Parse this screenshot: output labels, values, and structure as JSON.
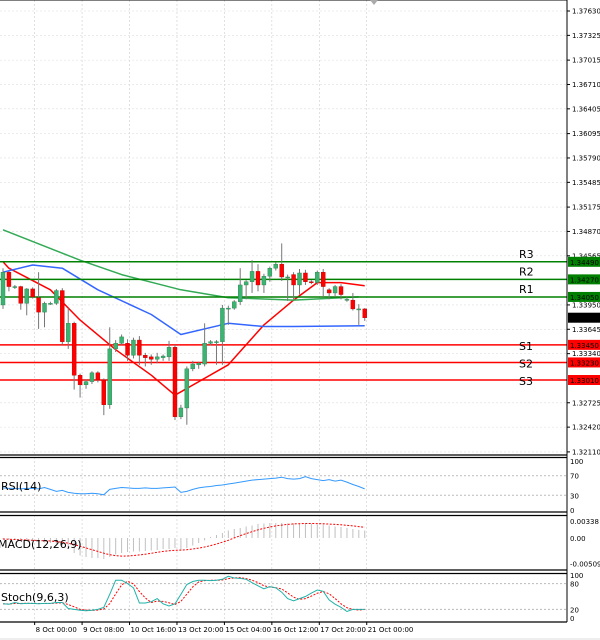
{
  "chart_data": {
    "type": "candlestick",
    "price_axis": {
      "ticks": [
        "1.37630",
        "1.37325",
        "1.37015",
        "1.36710",
        "1.36405",
        "1.36095",
        "1.35790",
        "1.35485",
        "1.35175",
        "1.34870",
        "1.34565",
        "1.33950",
        "1.33645",
        "1.33340",
        "1.32725",
        "1.32420",
        "1.32110"
      ],
      "range": [
        1.3211,
        1.3763
      ]
    },
    "current_price": {
      "label": "1.33790",
      "value": 1.3379,
      "color": "#000000"
    },
    "levels": [
      {
        "name": "R3",
        "label": "1.34490",
        "value": 1.3449,
        "color": "#008000"
      },
      {
        "name": "R2",
        "label": "1.34270",
        "value": 1.3427,
        "color": "#008000"
      },
      {
        "name": "R1",
        "label": "1.34050",
        "value": 1.3405,
        "color": "#008000"
      },
      {
        "name": "S1",
        "label": "1.33450",
        "value": 1.3345,
        "color": "#ff0000"
      },
      {
        "name": "S2",
        "label": "1.33230",
        "value": 1.3323,
        "color": "#ff0000"
      },
      {
        "name": "S3",
        "label": "1.33010",
        "value": 1.3301,
        "color": "#ff0000"
      }
    ],
    "time_labels": [
      {
        "label": "00",
        "index": -1
      },
      {
        "label": "8 Oct 00:00",
        "index": 5
      },
      {
        "label": "9 Oct 08:00",
        "index": 13
      },
      {
        "label": "10 Oct 16:00",
        "index": 21
      },
      {
        "label": "13 Oct 20:00",
        "index": 29
      },
      {
        "label": "15 Oct 04:00",
        "index": 37
      },
      {
        "label": "16 Oct 12:00",
        "index": 45
      },
      {
        "label": "17 Oct 20:00",
        "index": 53
      },
      {
        "label": "21 Oct 00:00",
        "index": 61
      }
    ],
    "candles": [
      [
        1.3395,
        1.3441,
        1.339,
        1.3436
      ],
      [
        1.3436,
        1.3437,
        1.3412,
        1.3418
      ],
      [
        1.3418,
        1.342,
        1.3415,
        1.3418
      ],
      [
        1.3418,
        1.3419,
        1.3389,
        1.3397
      ],
      [
        1.3397,
        1.3416,
        1.3382,
        1.3415
      ],
      [
        1.3415,
        1.3417,
        1.3403,
        1.3405
      ],
      [
        1.3404,
        1.3436,
        1.3365,
        1.3386
      ],
      [
        1.3386,
        1.3399,
        1.3367,
        1.3397
      ],
      [
        1.3397,
        1.3399,
        1.3395,
        1.3397
      ],
      [
        1.3397,
        1.3415,
        1.3395,
        1.3413
      ],
      [
        1.3413,
        1.3416,
        1.3345,
        1.3349
      ],
      [
        1.3349,
        1.3391,
        1.334,
        1.3372
      ],
      [
        1.3372,
        1.3374,
        1.3289,
        1.3307
      ],
      [
        1.3307,
        1.3309,
        1.3279,
        1.3295
      ],
      [
        1.3295,
        1.3302,
        1.329,
        1.3299
      ],
      [
        1.3299,
        1.3312,
        1.3296,
        1.331
      ],
      [
        1.331,
        1.3312,
        1.3298,
        1.3301
      ],
      [
        1.3301,
        1.3303,
        1.3257,
        1.327
      ],
      [
        1.327,
        1.3367,
        1.3265,
        1.334
      ],
      [
        1.334,
        1.3351,
        1.3336,
        1.3347
      ],
      [
        1.3347,
        1.3358,
        1.3345,
        1.3355
      ],
      [
        1.3347,
        1.3352,
        1.3325,
        1.3332
      ],
      [
        1.3332,
        1.3354,
        1.3328,
        1.3351
      ],
      [
        1.3351,
        1.3356,
        1.332,
        1.3332
      ],
      [
        1.3332,
        1.3335,
        1.3318,
        1.3329
      ],
      [
        1.333,
        1.3333,
        1.332,
        1.3327
      ],
      [
        1.3327,
        1.3335,
        1.3322,
        1.333
      ],
      [
        1.3329,
        1.3333,
        1.3325,
        1.3331
      ],
      [
        1.333,
        1.335,
        1.3325,
        1.3342
      ],
      [
        1.3342,
        1.3345,
        1.3251,
        1.3255
      ],
      [
        1.3255,
        1.327,
        1.3252,
        1.3266
      ],
      [
        1.3266,
        1.3318,
        1.3245,
        1.3315
      ],
      [
        1.3315,
        1.3325,
        1.3312,
        1.3321
      ],
      [
        1.332,
        1.3324,
        1.3315,
        1.3322
      ],
      [
        1.3321,
        1.3372,
        1.3318,
        1.3347
      ],
      [
        1.3347,
        1.3351,
        1.3344,
        1.3349
      ],
      [
        1.3349,
        1.3351,
        1.332,
        1.3349
      ],
      [
        1.3349,
        1.3395,
        1.332,
        1.3391
      ],
      [
        1.3391,
        1.3394,
        1.337,
        1.3391
      ],
      [
        1.3391,
        1.3401,
        1.3389,
        1.3399
      ],
      [
        1.3399,
        1.3441,
        1.3395,
        1.342
      ],
      [
        1.342,
        1.3426,
        1.3402,
        1.3424
      ],
      [
        1.3424,
        1.3451,
        1.341,
        1.3437
      ],
      [
        1.3437,
        1.3446,
        1.3412,
        1.342
      ],
      [
        1.342,
        1.3434,
        1.341,
        1.3431
      ],
      [
        1.3431,
        1.3443,
        1.3424,
        1.3441
      ],
      [
        1.3441,
        1.3448,
        1.3438,
        1.3446
      ],
      [
        1.3446,
        1.3472,
        1.3425,
        1.343
      ],
      [
        1.343,
        1.3433,
        1.34,
        1.343
      ],
      [
        1.3433,
        1.3436,
        1.3402,
        1.342
      ],
      [
        1.342,
        1.344,
        1.3408,
        1.3435
      ],
      [
        1.3435,
        1.3439,
        1.342,
        1.3424
      ],
      [
        1.3424,
        1.3426,
        1.3421,
        1.3423
      ],
      [
        1.3423,
        1.3438,
        1.342,
        1.3436
      ],
      [
        1.3436,
        1.344,
        1.3405,
        1.3418
      ],
      [
        1.3414,
        1.3416,
        1.3402,
        1.341
      ],
      [
        1.341,
        1.342,
        1.3405,
        1.3418
      ],
      [
        1.3418,
        1.3421,
        1.3402,
        1.3408
      ],
      [
        1.3402,
        1.3405,
        1.3399,
        1.3402
      ],
      [
        1.3401,
        1.341,
        1.3388,
        1.339
      ],
      [
        1.339,
        1.3396,
        1.337,
        1.339
      ],
      [
        1.339,
        1.3391,
        1.3375,
        1.3379
      ]
    ],
    "moving_averages": [
      {
        "color": "#ff0000",
        "points": [
          [
            0,
            1.3449
          ],
          [
            1,
            1.3441
          ],
          [
            8,
            1.3414
          ],
          [
            13,
            1.3376
          ],
          [
            19,
            1.3339
          ],
          [
            25,
            1.3307
          ],
          [
            29,
            1.3282
          ],
          [
            38,
            1.332
          ],
          [
            44,
            1.337
          ],
          [
            49,
            1.3401
          ],
          [
            53,
            1.3423
          ],
          [
            57,
            1.3423
          ],
          [
            61,
            1.3419
          ]
        ]
      },
      {
        "color": "#3366ff",
        "points": [
          [
            0,
            1.3436
          ],
          [
            5,
            1.3445
          ],
          [
            10,
            1.3441
          ],
          [
            16,
            1.3414
          ],
          [
            25,
            1.3383
          ],
          [
            30,
            1.3358
          ],
          [
            38,
            1.3372
          ],
          [
            44,
            1.3368
          ],
          [
            49,
            1.3368
          ],
          [
            61,
            1.3369
          ]
        ]
      },
      {
        "color": "#33aa55",
        "points": [
          [
            0,
            1.3489
          ],
          [
            13,
            1.3451
          ],
          [
            20,
            1.3433
          ],
          [
            30,
            1.3414
          ],
          [
            38,
            1.3404
          ],
          [
            49,
            1.3401
          ],
          [
            60,
            1.3405
          ]
        ]
      }
    ],
    "rsi": {
      "label": "RSI(14)",
      "ticks": [
        "100",
        "70",
        "30",
        "0"
      ],
      "levels": [
        30,
        70
      ],
      "color": "#3399ff",
      "values": [
        45,
        44,
        44,
        43,
        44,
        44,
        43,
        46,
        42,
        38,
        40,
        36,
        34,
        33,
        33,
        34,
        33,
        31,
        42,
        44,
        46,
        45,
        44,
        44,
        45,
        44,
        44,
        45,
        46,
        47,
        36,
        38,
        42,
        45,
        47,
        48,
        50,
        51,
        53,
        55,
        57,
        59,
        61,
        62,
        63,
        64,
        65,
        67,
        64,
        63,
        64,
        68,
        64,
        62,
        60,
        62,
        59,
        61,
        57,
        52,
        48,
        43
      ]
    },
    "macd": {
      "label": "MACD(12,26,9)",
      "ticks": [
        "0.00338",
        "0.00",
        "-0.005097"
      ],
      "range": [
        -0.005097,
        0.00338
      ],
      "histogram_color": "#c0c0c0",
      "signal_color": "#ff0000",
      "histogram": [
        -0.0002,
        -0.0003,
        -0.0004,
        -0.0005,
        -0.0006,
        -0.0007,
        -0.0008,
        -0.0009,
        -0.001,
        -0.0012,
        -0.0015,
        -0.0022,
        -0.003,
        -0.0035,
        -0.0038,
        -0.004,
        -0.004,
        -0.0042,
        -0.0038,
        -0.0033,
        -0.003,
        -0.0028,
        -0.0027,
        -0.0027,
        -0.0026,
        -0.0025,
        -0.0024,
        -0.0022,
        -0.0022,
        -0.002,
        -0.0024,
        -0.002,
        -0.0015,
        -0.001,
        -0.0005,
        0.0002,
        0.0006,
        0.001,
        0.0015,
        0.0018,
        0.002,
        0.0023,
        0.0025,
        0.0028,
        0.0029,
        0.003,
        0.003,
        0.003,
        0.0029,
        0.0029,
        0.0028,
        0.0028,
        0.0028,
        0.0027,
        0.0027,
        0.0025,
        0.0023,
        0.0022,
        0.002,
        0.0018,
        0.0016,
        0.0015
      ]
    },
    "stochastic": {
      "label": "Stoch(9,6,3)",
      "ticks": [
        "100",
        "80",
        "20",
        "0"
      ],
      "levels": [
        20,
        80
      ],
      "main_color": "#20b2aa",
      "signal_color": "#ff0000",
      "main": [
        33,
        32,
        36,
        33,
        34,
        34,
        33,
        34,
        34,
        36,
        36,
        22,
        20,
        18,
        17,
        18,
        20,
        25,
        55,
        88,
        88,
        80,
        70,
        35,
        35,
        38,
        45,
        33,
        28,
        33,
        55,
        78,
        85,
        88,
        88,
        87,
        88,
        90,
        97,
        93,
        92,
        90,
        82,
        75,
        68,
        73,
        70,
        60,
        45,
        40,
        45,
        50,
        58,
        65,
        62,
        42,
        32,
        25,
        15,
        20,
        20,
        20
      ]
    }
  }
}
